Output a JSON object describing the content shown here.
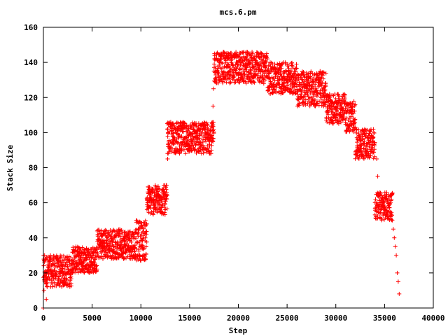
{
  "chart_data": {
    "type": "scatter",
    "title": "mcs.6.pm",
    "xlabel": "Step",
    "ylabel": "Stack Size",
    "xlim": [
      0,
      40000
    ],
    "ylim": [
      0,
      160
    ],
    "xticks": [
      0,
      5000,
      10000,
      15000,
      20000,
      25000,
      30000,
      35000,
      40000
    ],
    "yticks": [
      0,
      20,
      40,
      60,
      80,
      100,
      120,
      140,
      160
    ],
    "grid": false,
    "legend": "none",
    "marker": "plus",
    "color": "#ff0000",
    "series": [
      {
        "bands": [
          {
            "x": [
              0,
              2900
            ],
            "y": [
              12,
              30
            ]
          },
          {
            "x": [
              2900,
              5500
            ],
            "y": [
              20,
              35
            ]
          },
          {
            "x": [
              5500,
              9500
            ],
            "y": [
              28,
              45
            ]
          },
          {
            "x": [
              9500,
              10600
            ],
            "y": [
              27,
              50
            ]
          },
          {
            "x": [
              10600,
              12700
            ],
            "y": [
              53,
              70
            ]
          },
          {
            "x": [
              12700,
              17500
            ],
            "y": [
              88,
              106
            ]
          },
          {
            "x": [
              17500,
              23000
            ],
            "y": [
              128,
              146
            ]
          },
          {
            "x": [
              23000,
              26000
            ],
            "y": [
              122,
              140
            ]
          },
          {
            "x": [
              26000,
              29000
            ],
            "y": [
              115,
              135
            ]
          },
          {
            "x": [
              29000,
              31000
            ],
            "y": [
              105,
              122
            ]
          },
          {
            "x": [
              31000,
              32000
            ],
            "y": [
              100,
              118
            ]
          },
          {
            "x": [
              32000,
              34000
            ],
            "y": [
              85,
              102
            ]
          },
          {
            "x": [
              34000,
              35800
            ],
            "y": [
              50,
              66
            ]
          }
        ],
        "points": [
          [
            0,
            0
          ],
          [
            60,
            10
          ],
          [
            120,
            30
          ],
          [
            300,
            5
          ],
          [
            10600,
            48
          ],
          [
            10700,
            60
          ],
          [
            12600,
            70
          ],
          [
            12750,
            85
          ],
          [
            12800,
            100
          ],
          [
            17300,
            105
          ],
          [
            17400,
            115
          ],
          [
            17450,
            125
          ],
          [
            17500,
            135
          ],
          [
            17550,
            145
          ],
          [
            34200,
            85
          ],
          [
            34300,
            75
          ],
          [
            34400,
            65
          ],
          [
            35800,
            50
          ],
          [
            35900,
            45
          ],
          [
            36000,
            40
          ],
          [
            36100,
            35
          ],
          [
            36200,
            30
          ],
          [
            36300,
            20
          ],
          [
            36400,
            15
          ],
          [
            36500,
            8
          ]
        ]
      }
    ]
  }
}
